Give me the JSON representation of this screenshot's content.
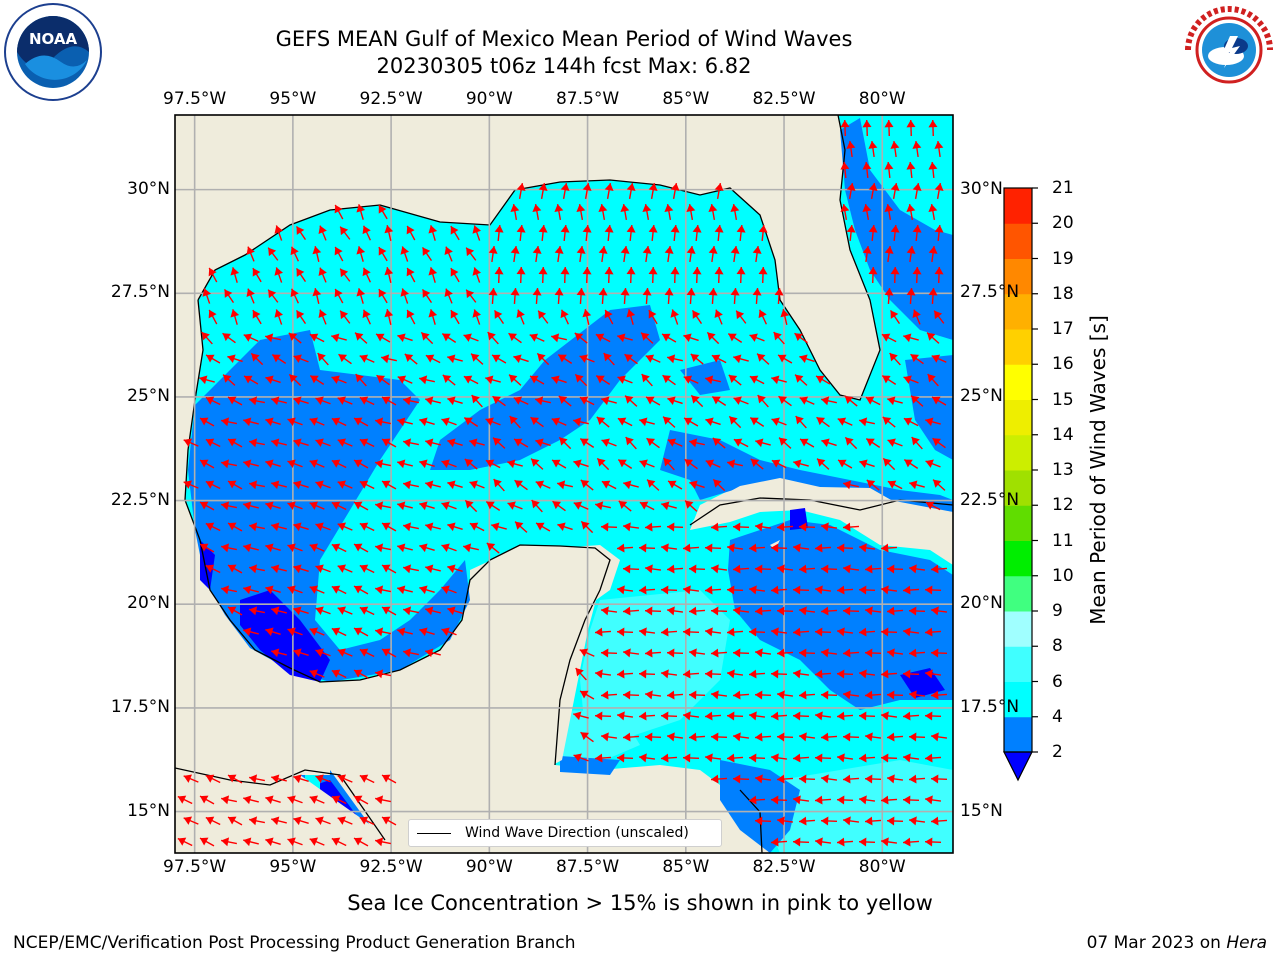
{
  "title": {
    "line1": "GEFS MEAN Gulf of Mexico Mean Period of Wind Waves",
    "line2": "20230305 t06z 144h fcst   Max: 6.82"
  },
  "logos": {
    "left": "NOAA",
    "right": "NATIONAL WEATHER SERVICE"
  },
  "map": {
    "lon_ticks": [
      "97.5°W",
      "95°W",
      "92.5°W",
      "90°W",
      "87.5°W",
      "85°W",
      "82.5°W",
      "80°W"
    ],
    "lat_ticks": [
      "30°N",
      "27.5°N",
      "25°N",
      "22.5°N",
      "20°N",
      "17.5°N",
      "15°N"
    ],
    "lon_values": [
      -97.5,
      -95,
      -92.5,
      -90,
      -87.5,
      -85,
      -82.5,
      -80
    ],
    "lat_values": [
      30,
      27.5,
      25,
      22.5,
      20,
      17.5,
      15
    ],
    "extent": {
      "lon": [
        -98,
        -78.2
      ],
      "lat": [
        14,
        31.8
      ]
    },
    "land_color": "#efecdc",
    "arrow_color": "#ff0000",
    "grid": true
  },
  "legend": {
    "label": "Wind Wave Direction (unscaled)"
  },
  "colorbar": {
    "label": "Mean Period of Wind Waves [s]",
    "ticks": [
      "2",
      "4",
      "6",
      "8",
      "9",
      "10",
      "11",
      "12",
      "13",
      "14",
      "15",
      "16",
      "17",
      "18",
      "19",
      "20",
      "21"
    ],
    "colors": [
      "#0080ff",
      "#00ffff",
      "#40ffff",
      "#a0ffff",
      "#40ff80",
      "#00ee00",
      "#60dd00",
      "#a0e000",
      "#ccee00",
      "#eeee00",
      "#ffff00",
      "#ffd000",
      "#ffb000",
      "#ff8800",
      "#ff5500",
      "#ff2200"
    ],
    "under_color": "#0000ff"
  },
  "subtitle": "Sea Ice Concentration > 15% is shown in pink to yellow",
  "footer": {
    "left": "NCEP/EMC/Verification Post Processing Product Generation Branch",
    "date": "07 Mar 2023 on ",
    "machine": "Hera"
  }
}
